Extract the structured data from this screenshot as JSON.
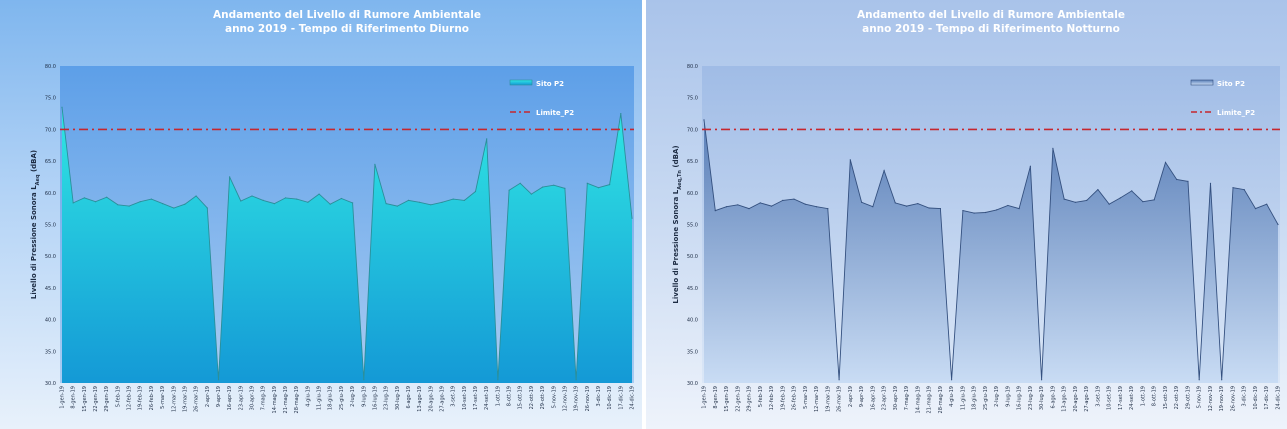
{
  "chart_data": [
    {
      "type": "area",
      "title": "Andamento del Livello di Rumore Ambientale",
      "subtitle": "anno 2019 - Tempo di Riferimento Diurno",
      "ylabel_main": "Livello di Pressione Sonora L",
      "ylabel_sub": "Aeq",
      "ylabel_unit": "(dBA)",
      "ylim": [
        30.0,
        80.0
      ],
      "yticks": [
        "80.0",
        "75.0",
        "70.0",
        "65.0",
        "60.0",
        "55.0",
        "50.0",
        "45.0",
        "40.0",
        "35.0",
        "30.0"
      ],
      "legend": {
        "placement": "top-right"
      },
      "colors": {
        "fill_top": "#30e6e3",
        "fill_bottom": "#1499d6",
        "line": "#2b8f9a",
        "limit": "#c6262e",
        "plot_bg_top": "#5d9fe8",
        "plot_bg_bottom": "#a9ccf2"
      },
      "x": [
        "1-gen-19",
        "8-gen-19",
        "15-gen-19",
        "22-gen-19",
        "29-gen-19",
        "5-feb-19",
        "12-feb-19",
        "19-feb-19",
        "26-feb-19",
        "5-mar-19",
        "12-mar-19",
        "19-mar-19",
        "26-mar-19",
        "2-apr-19",
        "9-apr-19",
        "16-apr-19",
        "23-apr-19",
        "30-apr-19",
        "7-mag-19",
        "14-mag-19",
        "21-mag-19",
        "28-mag-19",
        "4-giu-19",
        "11-giu-19",
        "18-giu-19",
        "25-giu-19",
        "2-lug-19",
        "9-lug-19",
        "16-lug-19",
        "23-lug-19",
        "30-lug-19",
        "6-ago-19",
        "13-ago-19",
        "20-ago-19",
        "27-ago-19",
        "3-set-19",
        "10-set-19",
        "17-set-19",
        "24-set-19",
        "1-ott-19",
        "8-ott-19",
        "15-ott-19",
        "22-ott-19",
        "29-ott-19",
        "5-nov-19",
        "12-nov-19",
        "19-nov-19",
        "26-nov-19",
        "3-dic-19",
        "10-dic-19",
        "17-dic-19",
        "24-dic-19"
      ],
      "series": [
        {
          "name": "Sito P2",
          "values": [
            73.5,
            58.4,
            59.2,
            58.6,
            59.3,
            58.1,
            57.9,
            58.6,
            59.0,
            58.3,
            57.6,
            58.2,
            59.5,
            57.6,
            30.5,
            62.5,
            58.7,
            59.5,
            58.8,
            58.3,
            59.2,
            59.0,
            58.5,
            59.8,
            58.2,
            59.1,
            58.4,
            30.5,
            64.5,
            58.3,
            57.9,
            58.8,
            58.5,
            58.1,
            58.5,
            59.0,
            58.8,
            60.2,
            68.5,
            30.5,
            60.4,
            61.5,
            59.8,
            60.9,
            61.2,
            60.7,
            30.5,
            61.5,
            60.8,
            61.3,
            72.5,
            56.0
          ]
        },
        {
          "name": "Limite_P2",
          "values": [
            70,
            70,
            70,
            70,
            70,
            70,
            70,
            70,
            70,
            70,
            70,
            70,
            70,
            70,
            70,
            70,
            70,
            70,
            70,
            70,
            70,
            70,
            70,
            70,
            70,
            70,
            70,
            70,
            70,
            70,
            70,
            70,
            70,
            70,
            70,
            70,
            70,
            70,
            70,
            70,
            70,
            70,
            70,
            70,
            70,
            70,
            70,
            70,
            70,
            70,
            70,
            70
          ]
        }
      ]
    },
    {
      "type": "area",
      "title": "Andamento del Livello di Rumore Ambientale",
      "subtitle": "anno 2019 - Tempo di Riferimento Notturno",
      "ylabel_main": "Livello di Pressione Sonora L",
      "ylabel_sub": "Aeq,Tn",
      "ylabel_unit": "(dBA)",
      "ylim": [
        30.0,
        80.0
      ],
      "yticks": [
        "80.0",
        "75.0",
        "70.0",
        "65.0",
        "60.0",
        "55.0",
        "50.0",
        "45.0",
        "40.0",
        "35.0",
        "30.0"
      ],
      "legend": {
        "placement": "top-right"
      },
      "colors": {
        "fill_top": "#5a7fb8",
        "fill_bottom": "#c9dcf4",
        "line": "#34507f",
        "limit": "#c6262e",
        "plot_bg_top": "#a0bce6",
        "plot_bg_bottom": "#dbe7f7"
      },
      "x": [
        "1-gen-19",
        "8-gen-19",
        "15-gen-19",
        "22-gen-19",
        "29-gen-19",
        "5-feb-19",
        "12-feb-19",
        "19-feb-19",
        "26-feb-19",
        "5-mar-19",
        "12-mar-19",
        "19-mar-19",
        "26-mar-19",
        "2-apr-19",
        "9-apr-19",
        "16-apr-19",
        "23-apr-19",
        "30-apr-19",
        "7-mag-19",
        "14-mag-19",
        "21-mag-19",
        "28-mag-19",
        "4-giu-19",
        "11-giu-19",
        "18-giu-19",
        "25-giu-19",
        "2-lug-19",
        "9-lug-19",
        "16-lug-19",
        "23-lug-19",
        "30-lug-19",
        "6-ago-19",
        "13-ago-19",
        "20-ago-19",
        "27-ago-19",
        "3-set-19",
        "10-set-19",
        "17-set-19",
        "24-set-19",
        "1-ott-19",
        "8-ott-19",
        "15-ott-19",
        "22-ott-19",
        "29-ott-19",
        "5-nov-19",
        "12-nov-19",
        "19-nov-19",
        "26-nov-19",
        "3-dic-19",
        "10-dic-19",
        "17-dic-19",
        "24-dic-19"
      ],
      "series": [
        {
          "name": "Sito P2",
          "values": [
            71.5,
            57.2,
            57.8,
            58.1,
            57.5,
            58.4,
            57.9,
            58.8,
            59.0,
            58.2,
            57.8,
            57.5,
            30.5,
            65.2,
            58.5,
            57.8,
            63.5,
            58.4,
            57.9,
            58.3,
            57.6,
            57.5,
            30.5,
            57.2,
            56.8,
            56.9,
            57.3,
            58.0,
            57.5,
            64.2,
            30.5,
            67.0,
            59.0,
            58.5,
            58.8,
            60.5,
            58.2,
            59.2,
            60.3,
            58.6,
            58.9,
            64.8,
            62.1,
            61.8,
            30.5,
            61.5,
            30.5,
            60.8,
            60.5,
            57.5,
            58.2,
            55.0
          ]
        },
        {
          "name": "Limite_P2",
          "values": [
            70,
            70,
            70,
            70,
            70,
            70,
            70,
            70,
            70,
            70,
            70,
            70,
            70,
            70,
            70,
            70,
            70,
            70,
            70,
            70,
            70,
            70,
            70,
            70,
            70,
            70,
            70,
            70,
            70,
            70,
            70,
            70,
            70,
            70,
            70,
            70,
            70,
            70,
            70,
            70,
            70,
            70,
            70,
            70,
            70,
            70,
            70,
            70,
            70,
            70,
            70,
            70
          ]
        }
      ]
    }
  ]
}
